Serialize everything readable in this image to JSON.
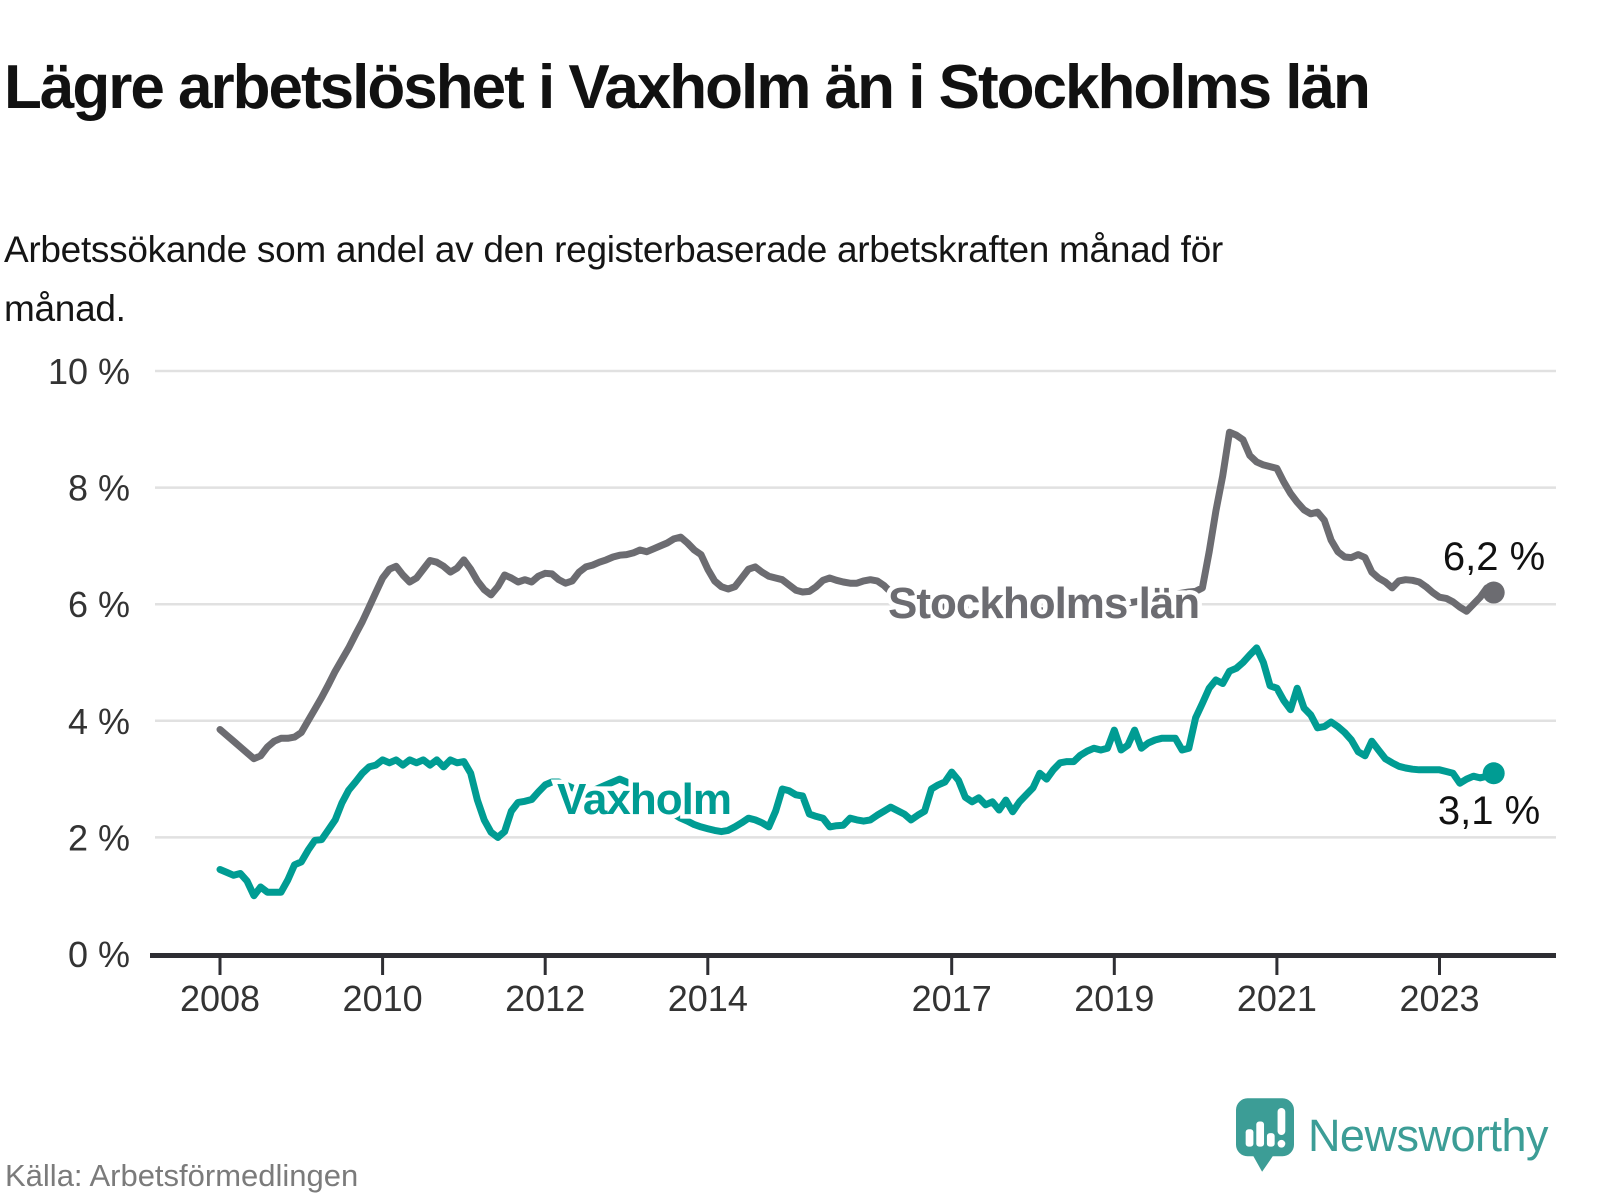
{
  "title": "Lägre arbetslöshet i Vaxholm än i Stockholms län",
  "subtitle": "Arbetssökande som andel av den registerbaserade arbetskraften månad för månad.",
  "source": "Källa: Arbetsförmedlingen",
  "brand": {
    "name": "Newsworthy"
  },
  "colors": {
    "vaxholm": "#009c93",
    "stockholm": "#6c6c71",
    "grid": "#e1e1e1",
    "axis": "#2e2e33",
    "tick_text": "#333333",
    "label_text": "#111111",
    "muted_text": "#7b7b7b",
    "logo": "#3c9d96"
  },
  "chart_data": {
    "type": "line",
    "unit": "%",
    "grid": "horizontal",
    "legend_position": "inline-labels",
    "ylim": [
      0,
      10
    ],
    "x_start": {
      "year": 2008,
      "month": 1
    },
    "x_end": {
      "year": 2023,
      "month": 9
    },
    "x_axis": {
      "ticks": [
        {
          "year": 2008,
          "label": "2008"
        },
        {
          "year": 2010,
          "label": "2010"
        },
        {
          "year": 2012,
          "label": "2012"
        },
        {
          "year": 2014,
          "label": "2014"
        },
        {
          "year": 2017,
          "label": "2017"
        },
        {
          "year": 2019,
          "label": "2019"
        },
        {
          "year": 2021,
          "label": "2021"
        },
        {
          "year": 2023,
          "label": "2023"
        }
      ]
    },
    "y_axis": {
      "ticks": [
        {
          "value": 0,
          "label": "0 %"
        },
        {
          "value": 2,
          "label": "2 %"
        },
        {
          "value": 4,
          "label": "4 %"
        },
        {
          "value": 6,
          "label": "6 %"
        },
        {
          "value": 8,
          "label": "8 %"
        },
        {
          "value": 10,
          "label": "10 %"
        }
      ]
    },
    "series": [
      {
        "name": "Stockholms län",
        "color": "#6c6c71",
        "end_label": "6,2 %",
        "end_value": 6.2,
        "values": [
          3.85,
          3.75,
          3.65,
          3.55,
          3.45,
          3.35,
          3.4,
          3.55,
          3.65,
          3.7,
          3.7,
          3.72,
          3.8,
          4.0,
          4.2,
          4.4,
          4.62,
          4.85,
          5.05,
          5.25,
          5.48,
          5.7,
          5.95,
          6.2,
          6.45,
          6.6,
          6.65,
          6.5,
          6.38,
          6.45,
          6.6,
          6.75,
          6.72,
          6.65,
          6.55,
          6.62,
          6.76,
          6.6,
          6.4,
          6.25,
          6.16,
          6.3,
          6.5,
          6.45,
          6.38,
          6.42,
          6.38,
          6.48,
          6.53,
          6.52,
          6.42,
          6.36,
          6.4,
          6.55,
          6.64,
          6.67,
          6.72,
          6.76,
          6.81,
          6.84,
          6.85,
          6.88,
          6.93,
          6.9,
          6.95,
          7.0,
          7.05,
          7.12,
          7.15,
          7.05,
          6.93,
          6.85,
          6.6,
          6.4,
          6.3,
          6.26,
          6.3,
          6.45,
          6.6,
          6.64,
          6.55,
          6.48,
          6.45,
          6.42,
          6.33,
          6.24,
          6.21,
          6.22,
          6.3,
          6.41,
          6.45,
          6.41,
          6.38,
          6.36,
          6.36,
          6.4,
          6.42,
          6.4,
          6.32,
          6.21,
          6.1,
          6.04,
          6.02,
          6.0,
          5.98,
          5.97,
          5.96,
          5.95,
          5.95,
          5.93,
          5.91,
          5.89,
          5.87,
          5.86,
          5.85,
          5.85,
          5.86,
          5.87,
          5.88,
          5.9,
          5.9,
          5.89,
          5.88,
          5.87,
          5.86,
          5.86,
          5.87,
          5.88,
          5.9,
          5.92,
          5.94,
          5.96,
          5.98,
          6.0,
          6.02,
          6.04,
          6.06,
          6.08,
          6.1,
          6.12,
          6.15,
          6.17,
          6.19,
          6.21,
          6.22,
          6.28,
          6.9,
          7.6,
          8.2,
          8.95,
          8.9,
          8.82,
          8.55,
          8.44,
          8.39,
          8.36,
          8.33,
          8.1,
          7.9,
          7.75,
          7.62,
          7.55,
          7.58,
          7.44,
          7.1,
          6.9,
          6.81,
          6.8,
          6.85,
          6.8,
          6.55,
          6.45,
          6.38,
          6.28,
          6.4,
          6.42,
          6.41,
          6.38,
          6.3,
          6.2,
          6.12,
          6.1,
          6.04,
          5.95,
          5.88,
          6.0,
          6.12,
          6.28,
          6.2
        ]
      },
      {
        "name": "Vaxholm",
        "color": "#009c93",
        "end_label": "3,1 %",
        "end_value": 3.1,
        "values": [
          1.45,
          1.4,
          1.35,
          1.38,
          1.25,
          1.0,
          1.15,
          1.06,
          1.06,
          1.06,
          1.27,
          1.53,
          1.58,
          1.78,
          1.95,
          1.96,
          2.13,
          2.3,
          2.59,
          2.81,
          2.95,
          3.1,
          3.21,
          3.24,
          3.33,
          3.28,
          3.33,
          3.24,
          3.33,
          3.28,
          3.33,
          3.24,
          3.33,
          3.21,
          3.33,
          3.28,
          3.3,
          3.1,
          2.64,
          2.3,
          2.09,
          2.0,
          2.1,
          2.45,
          2.6,
          2.62,
          2.65,
          2.78,
          2.9,
          2.95,
          2.95,
          2.9,
          2.85,
          2.8,
          2.78,
          2.8,
          2.85,
          2.9,
          2.95,
          3.0,
          2.95,
          2.88,
          2.8,
          2.72,
          2.64,
          2.56,
          2.48,
          2.4,
          2.33,
          2.28,
          2.22,
          2.18,
          2.15,
          2.12,
          2.1,
          2.12,
          2.18,
          2.25,
          2.33,
          2.3,
          2.25,
          2.18,
          2.45,
          2.83,
          2.8,
          2.73,
          2.71,
          2.4,
          2.36,
          2.33,
          2.18,
          2.2,
          2.21,
          2.33,
          2.3,
          2.28,
          2.3,
          2.38,
          2.45,
          2.52,
          2.46,
          2.4,
          2.3,
          2.38,
          2.45,
          2.83,
          2.9,
          2.95,
          3.12,
          2.98,
          2.69,
          2.61,
          2.68,
          2.56,
          2.61,
          2.47,
          2.64,
          2.44,
          2.61,
          2.73,
          2.85,
          3.1,
          3.0,
          3.16,
          3.28,
          3.3,
          3.3,
          3.41,
          3.48,
          3.53,
          3.5,
          3.53,
          3.84,
          3.5,
          3.58,
          3.84,
          3.53,
          3.62,
          3.67,
          3.7,
          3.7,
          3.7,
          3.5,
          3.53,
          4.05,
          4.3,
          4.56,
          4.7,
          4.64,
          4.85,
          4.9,
          5.0,
          5.13,
          5.25,
          5.0,
          4.6,
          4.56,
          4.35,
          4.19,
          4.56,
          4.22,
          4.1,
          3.88,
          3.9,
          3.98,
          3.9,
          3.8,
          3.67,
          3.47,
          3.4,
          3.65,
          3.5,
          3.35,
          3.28,
          3.22,
          3.19,
          3.17,
          3.16,
          3.16,
          3.16,
          3.16,
          3.13,
          3.1,
          2.93,
          3.0,
          3.05,
          3.02,
          3.05,
          3.1
        ]
      }
    ]
  }
}
